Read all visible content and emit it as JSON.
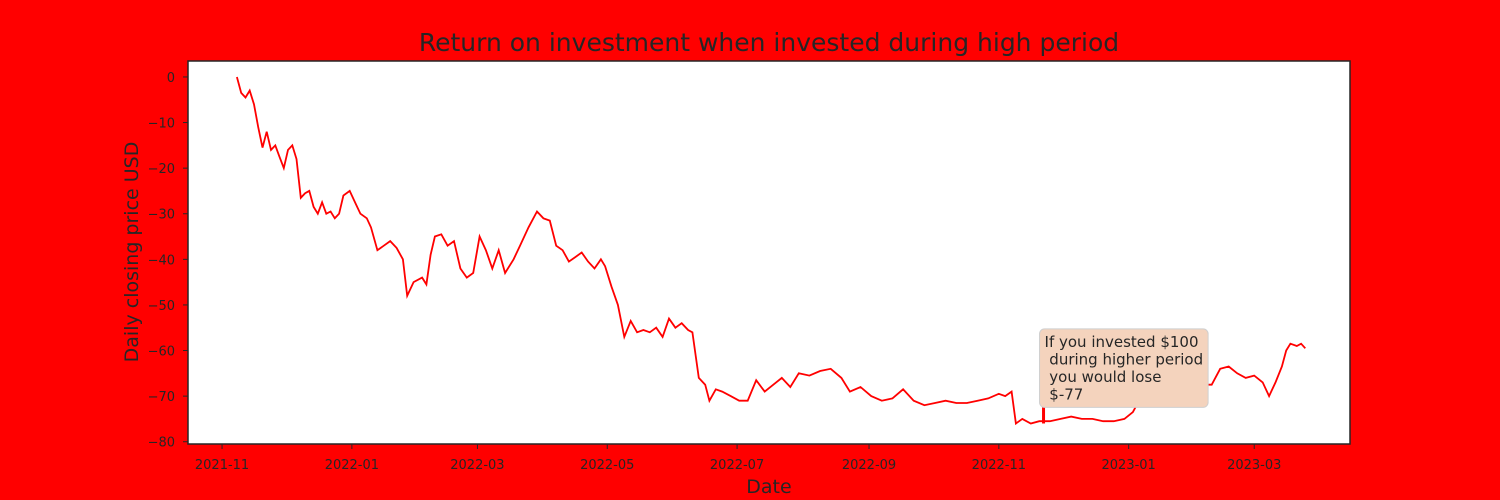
{
  "chart_data": {
    "type": "line",
    "title": "Return on investment when invested during high period",
    "xlabel": "Date",
    "ylabel": "Daily closing  price USD",
    "xlim": [
      "2021-10-16",
      "2023-04-15"
    ],
    "ylim": [
      -80.5,
      3.5
    ],
    "x_ticks": [
      "2021-11",
      "2022-01",
      "2022-03",
      "2022-05",
      "2022-07",
      "2022-09",
      "2022-11",
      "2023-01",
      "2023-03"
    ],
    "y_ticks": [
      0,
      -10,
      -20,
      -30,
      -40,
      -50,
      -60,
      -70,
      -80
    ],
    "grid": false,
    "series": [
      {
        "color": "#ff0000",
        "points": [
          [
            "2021-11-08",
            0
          ],
          [
            "2021-11-10",
            -3.5
          ],
          [
            "2021-11-12",
            -4.5
          ],
          [
            "2021-11-14",
            -3
          ],
          [
            "2021-11-16",
            -6
          ],
          [
            "2021-11-18",
            -11
          ],
          [
            "2021-11-20",
            -15.5
          ],
          [
            "2021-11-22",
            -12
          ],
          [
            "2021-11-24",
            -16
          ],
          [
            "2021-11-26",
            -15
          ],
          [
            "2021-11-28",
            -17.5
          ],
          [
            "2021-11-30",
            -20
          ],
          [
            "2021-12-02",
            -16
          ],
          [
            "2021-12-04",
            -15
          ],
          [
            "2021-12-06",
            -18
          ],
          [
            "2021-12-08",
            -26.5
          ],
          [
            "2021-12-10",
            -25.5
          ],
          [
            "2021-12-12",
            -25
          ],
          [
            "2021-12-14",
            -28.5
          ],
          [
            "2021-12-16",
            -30
          ],
          [
            "2021-12-18",
            -27.5
          ],
          [
            "2021-12-20",
            -30
          ],
          [
            "2021-12-22",
            -29.5
          ],
          [
            "2021-12-24",
            -31
          ],
          [
            "2021-12-26",
            -30
          ],
          [
            "2021-12-28",
            -26
          ],
          [
            "2021-12-31",
            -25
          ],
          [
            "2022-01-03",
            -28
          ],
          [
            "2022-01-05",
            -30
          ],
          [
            "2022-01-08",
            -31
          ],
          [
            "2022-01-10",
            -33
          ],
          [
            "2022-01-13",
            -38
          ],
          [
            "2022-01-16",
            -37
          ],
          [
            "2022-01-19",
            -36
          ],
          [
            "2022-01-22",
            -37.5
          ],
          [
            "2022-01-25",
            -40
          ],
          [
            "2022-01-27",
            -48
          ],
          [
            "2022-01-30",
            -45
          ],
          [
            "2022-02-03",
            -44
          ],
          [
            "2022-02-05",
            -45.5
          ],
          [
            "2022-02-07",
            -39
          ],
          [
            "2022-02-09",
            -35
          ],
          [
            "2022-02-12",
            -34.5
          ],
          [
            "2022-02-15",
            -37
          ],
          [
            "2022-02-18",
            -36
          ],
          [
            "2022-02-21",
            -42
          ],
          [
            "2022-02-24",
            -44
          ],
          [
            "2022-02-27",
            -43
          ],
          [
            "2022-03-02",
            -35
          ],
          [
            "2022-03-05",
            -38
          ],
          [
            "2022-03-08",
            -42
          ],
          [
            "2022-03-11",
            -38
          ],
          [
            "2022-03-14",
            -43
          ],
          [
            "2022-03-18",
            -40
          ],
          [
            "2022-03-21",
            -37
          ],
          [
            "2022-03-25",
            -33
          ],
          [
            "2022-03-29",
            -29.5
          ],
          [
            "2022-04-01",
            -31
          ],
          [
            "2022-04-04",
            -31.5
          ],
          [
            "2022-04-07",
            -37
          ],
          [
            "2022-04-10",
            -38
          ],
          [
            "2022-04-13",
            -40.5
          ],
          [
            "2022-04-16",
            -39.5
          ],
          [
            "2022-04-19",
            -38.5
          ],
          [
            "2022-04-22",
            -40.5
          ],
          [
            "2022-04-25",
            -42
          ],
          [
            "2022-04-28",
            -40
          ],
          [
            "2022-04-30",
            -41.5
          ],
          [
            "2022-05-03",
            -46
          ],
          [
            "2022-05-06",
            -50
          ],
          [
            "2022-05-09",
            -57
          ],
          [
            "2022-05-12",
            -53.5
          ],
          [
            "2022-05-15",
            -56
          ],
          [
            "2022-05-18",
            -55.5
          ],
          [
            "2022-05-21",
            -56
          ],
          [
            "2022-05-24",
            -55
          ],
          [
            "2022-05-27",
            -57
          ],
          [
            "2022-05-30",
            -53
          ],
          [
            "2022-06-02",
            -55
          ],
          [
            "2022-06-05",
            -54
          ],
          [
            "2022-06-08",
            -55.5
          ],
          [
            "2022-06-10",
            -56
          ],
          [
            "2022-06-13",
            -66
          ],
          [
            "2022-06-16",
            -67.5
          ],
          [
            "2022-06-18",
            -71
          ],
          [
            "2022-06-21",
            -68.5
          ],
          [
            "2022-06-24",
            -69
          ],
          [
            "2022-06-28",
            -70
          ],
          [
            "2022-07-02",
            -71
          ],
          [
            "2022-07-06",
            -71
          ],
          [
            "2022-07-10",
            -66.5
          ],
          [
            "2022-07-14",
            -69
          ],
          [
            "2022-07-18",
            -67.5
          ],
          [
            "2022-07-22",
            -66
          ],
          [
            "2022-07-26",
            -68
          ],
          [
            "2022-07-30",
            -65
          ],
          [
            "2022-08-04",
            -65.5
          ],
          [
            "2022-08-09",
            -64.5
          ],
          [
            "2022-08-14",
            -64
          ],
          [
            "2022-08-19",
            -66
          ],
          [
            "2022-08-23",
            -69
          ],
          [
            "2022-08-28",
            -68
          ],
          [
            "2022-09-02",
            -70
          ],
          [
            "2022-09-07",
            -71
          ],
          [
            "2022-09-12",
            -70.5
          ],
          [
            "2022-09-17",
            -68.5
          ],
          [
            "2022-09-22",
            -71
          ],
          [
            "2022-09-27",
            -72
          ],
          [
            "2022-10-02",
            -71.5
          ],
          [
            "2022-10-07",
            -71
          ],
          [
            "2022-10-12",
            -71.5
          ],
          [
            "2022-10-17",
            -71.5
          ],
          [
            "2022-10-22",
            -71
          ],
          [
            "2022-10-27",
            -70.5
          ],
          [
            "2022-11-01",
            -69.5
          ],
          [
            "2022-11-04",
            -70
          ],
          [
            "2022-11-07",
            -69
          ],
          [
            "2022-11-09",
            -76
          ],
          [
            "2022-11-12",
            -75
          ],
          [
            "2022-11-16",
            -76
          ],
          [
            "2022-11-20",
            -75.5
          ],
          [
            "2022-11-25",
            -75.5
          ],
          [
            "2022-11-30",
            -75
          ],
          [
            "2022-12-05",
            -74.5
          ],
          [
            "2022-12-10",
            -75
          ],
          [
            "2022-12-15",
            -75
          ],
          [
            "2022-12-20",
            -75.5
          ],
          [
            "2022-12-25",
            -75.5
          ],
          [
            "2022-12-30",
            -75
          ],
          [
            "2023-01-03",
            -73.5
          ],
          [
            "2023-01-07",
            -70
          ],
          [
            "2023-01-11",
            -68
          ],
          [
            "2023-01-15",
            -66.5
          ],
          [
            "2023-01-19",
            -67
          ],
          [
            "2023-01-23",
            -66
          ],
          [
            "2023-01-27",
            -66.5
          ],
          [
            "2023-02-01",
            -65.5
          ],
          [
            "2023-02-05",
            -67.5
          ],
          [
            "2023-02-09",
            -67.5
          ],
          [
            "2023-02-13",
            -64
          ],
          [
            "2023-02-17",
            -63.5
          ],
          [
            "2023-02-21",
            -65
          ],
          [
            "2023-02-25",
            -66
          ],
          [
            "2023-03-01",
            -65.5
          ],
          [
            "2023-03-05",
            -67
          ],
          [
            "2023-03-08",
            -70
          ],
          [
            "2023-03-11",
            -67
          ],
          [
            "2023-03-14",
            -63.5
          ],
          [
            "2023-03-16",
            -60
          ],
          [
            "2023-03-18",
            -58.5
          ],
          [
            "2023-03-21",
            -59
          ],
          [
            "2023-03-23",
            -58.5
          ],
          [
            "2023-03-25",
            -59.5
          ]
        ]
      }
    ],
    "annotation": {
      "text": [
        "If you invested $100",
        " during higher period",
        " you would lose",
        " $-77"
      ],
      "point": [
        "2022-11-22",
        -76
      ],
      "box_color": "#f4d3bd"
    },
    "colors": {
      "figure_background": "#ff0000",
      "plot_background": "#ffffff",
      "line": "#ff0000",
      "text": "#262626"
    }
  }
}
